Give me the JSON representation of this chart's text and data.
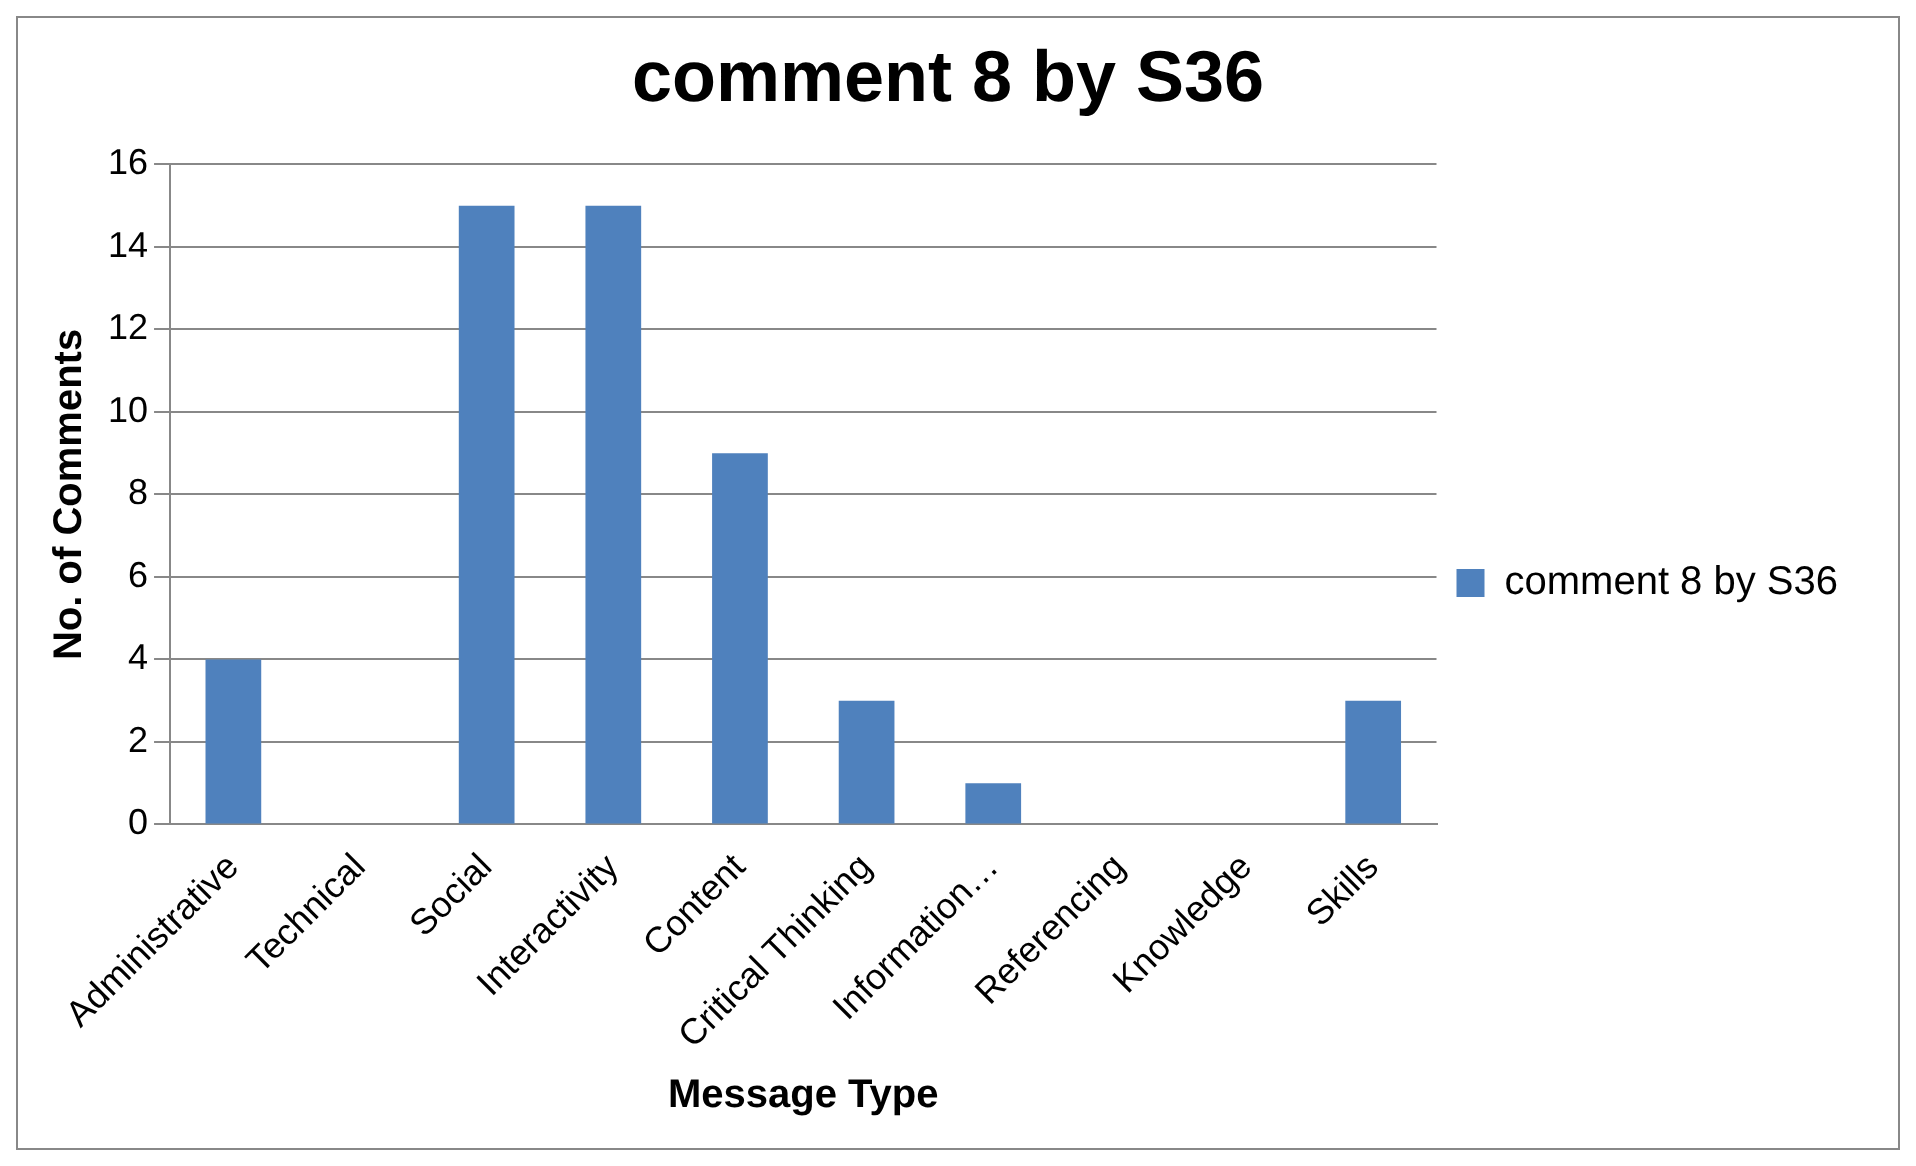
{
  "chart_data": {
    "type": "bar",
    "title": "comment 8 by S36",
    "xlabel": "Message Type",
    "ylabel": "No. of Comments",
    "categories": [
      "Administrative",
      "Technical",
      "Social",
      "Interactivity",
      "Content",
      "Critical Thinking",
      "Information…",
      "Referencing",
      "Knowledge",
      "Skills"
    ],
    "series": [
      {
        "name": "comment 8 by S36",
        "color": "#4f81bd",
        "values": [
          4,
          0,
          15,
          15,
          9,
          3,
          1,
          0,
          0,
          3
        ]
      }
    ],
    "ylim": [
      0,
      16
    ],
    "yticks": [
      0,
      2,
      4,
      6,
      8,
      10,
      12,
      14,
      16
    ],
    "grid": "y",
    "legend": "right"
  }
}
